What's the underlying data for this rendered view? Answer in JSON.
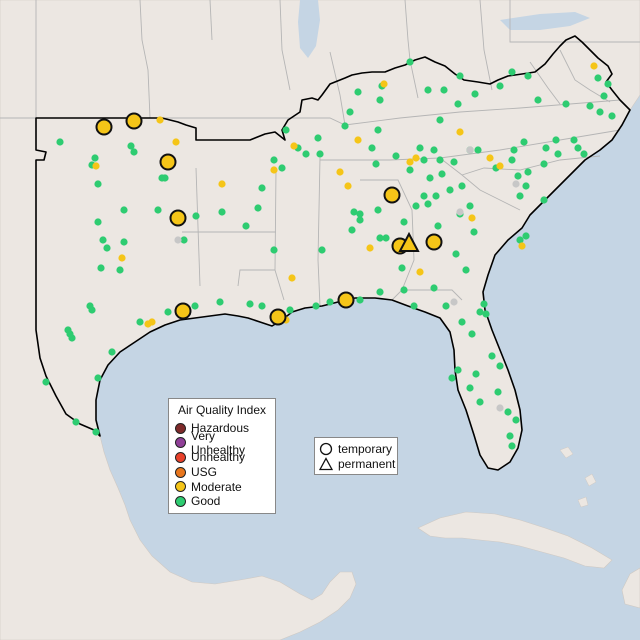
{
  "legend": {
    "title": "Air Quality Index",
    "categories": [
      {
        "label": "Hazardous",
        "color": "#7e2a2a"
      },
      {
        "label": "Very Unhealthy",
        "color": "#8f3f97"
      },
      {
        "label": "Unhealthy",
        "color": "#e8412b"
      },
      {
        "label": "USG",
        "color": "#e8761d"
      },
      {
        "label": "Moderate",
        "color": "#f5c518"
      },
      {
        "label": "Good",
        "color": "#2ecc71"
      }
    ]
  },
  "monitor_types": {
    "temporary_label": "temporary",
    "permanent_label": "permanent"
  },
  "colors": {
    "water": "#c5d5e4",
    "land": "#ece7e2",
    "region_outline": "#000000",
    "state_border": "#b5b5b5",
    "no_data": "#c7c7c7"
  }
}
